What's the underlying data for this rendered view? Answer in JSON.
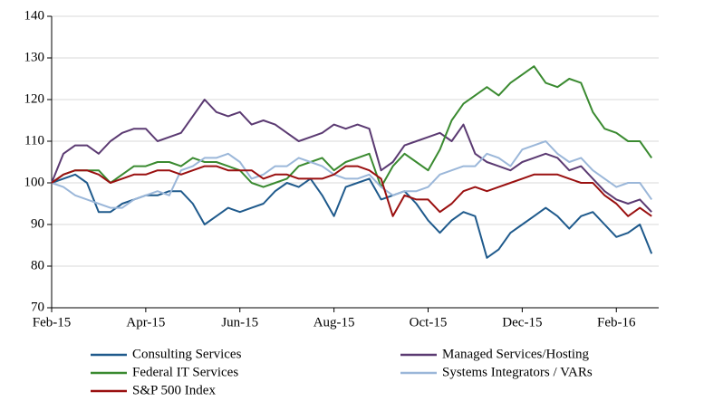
{
  "chart_data": {
    "type": "line",
    "x": [
      0,
      0.25,
      0.5,
      0.75,
      1,
      1.25,
      1.5,
      1.75,
      2,
      2.25,
      2.5,
      2.75,
      3,
      3.25,
      3.5,
      3.75,
      4,
      4.25,
      4.5,
      4.75,
      5,
      5.25,
      5.5,
      5.75,
      6,
      6.25,
      6.5,
      6.75,
      7,
      7.25,
      7.5,
      7.75,
      8,
      8.25,
      8.5,
      8.75,
      9,
      9.25,
      9.5,
      9.75,
      10,
      10.25,
      10.5,
      10.75,
      11,
      11.25,
      11.5,
      11.75,
      12,
      12.25,
      12.5,
      12.75
    ],
    "xlim": [
      0,
      12.9
    ],
    "xticks": [
      {
        "value": 0,
        "label": "Feb-15"
      },
      {
        "value": 2,
        "label": "Apr-15"
      },
      {
        "value": 4,
        "label": "Jun-15"
      },
      {
        "value": 6,
        "label": "Aug-15"
      },
      {
        "value": 8,
        "label": "Oct-15"
      },
      {
        "value": 10,
        "label": "Dec-15"
      },
      {
        "value": 12,
        "label": "Feb-16"
      }
    ],
    "ylim": [
      70,
      140
    ],
    "yticks": [
      70,
      80,
      90,
      100,
      110,
      120,
      130,
      140
    ],
    "grid": true,
    "legend": "bottom",
    "series": [
      {
        "name": "Consulting Services",
        "color": "#1f5a8c",
        "values": [
          100,
          101,
          102,
          100,
          93,
          93,
          95,
          96,
          97,
          97,
          98,
          98,
          95,
          90,
          92,
          94,
          93,
          94,
          95,
          98,
          100,
          99,
          101,
          97,
          92,
          99,
          100,
          101,
          96,
          97,
          98,
          95,
          91,
          88,
          91,
          93,
          92,
          82,
          84,
          88,
          90,
          92,
          94,
          92,
          89,
          92,
          93,
          90,
          87,
          88,
          90,
          83
        ]
      },
      {
        "name": "Managed Services/Hosting",
        "color": "#5b3a72",
        "values": [
          100,
          107,
          109,
          109,
          107,
          110,
          112,
          113,
          113,
          110,
          111,
          112,
          116,
          120,
          117,
          116,
          117,
          114,
          115,
          114,
          112,
          110,
          111,
          112,
          114,
          113,
          114,
          113,
          103,
          105,
          109,
          110,
          111,
          112,
          110,
          114,
          107,
          105,
          104,
          103,
          105,
          106,
          107,
          106,
          103,
          104,
          101,
          98,
          96,
          95,
          96,
          93
        ]
      },
      {
        "name": "Federal IT Services",
        "color": "#3a8a30",
        "values": [
          100,
          102,
          103,
          103,
          103,
          100,
          102,
          104,
          104,
          105,
          105,
          104,
          106,
          105,
          105,
          104,
          103,
          100,
          99,
          100,
          101,
          104,
          105,
          106,
          103,
          105,
          106,
          107,
          99,
          104,
          107,
          105,
          103,
          108,
          115,
          119,
          121,
          123,
          121,
          124,
          126,
          128,
          124,
          123,
          125,
          124,
          117,
          113,
          112,
          110,
          110,
          106
        ]
      },
      {
        "name": "Systems Integrators / VARs",
        "color": "#9bb7d9",
        "values": [
          100,
          99,
          97,
          96,
          95,
          94,
          94,
          96,
          97,
          98,
          97,
          103,
          104,
          106,
          106,
          107,
          105,
          101,
          102,
          104,
          104,
          106,
          105,
          104,
          102,
          101,
          101,
          102,
          99,
          97,
          98,
          98,
          99,
          102,
          103,
          104,
          104,
          107,
          106,
          104,
          108,
          109,
          110,
          107,
          105,
          106,
          103,
          101,
          99,
          100,
          100,
          96
        ]
      },
      {
        "name": "S&P 500 Index",
        "color": "#9a1010",
        "values": [
          100,
          102,
          103,
          103,
          102,
          100,
          101,
          102,
          102,
          103,
          103,
          102,
          103,
          104,
          104,
          103,
          103,
          103,
          101,
          102,
          102,
          101,
          101,
          101,
          102,
          104,
          104,
          103,
          101,
          92,
          97,
          96,
          96,
          93,
          95,
          98,
          99,
          98,
          99,
          100,
          101,
          102,
          102,
          102,
          101,
          100,
          100,
          97,
          95,
          92,
          94,
          92
        ]
      }
    ]
  }
}
